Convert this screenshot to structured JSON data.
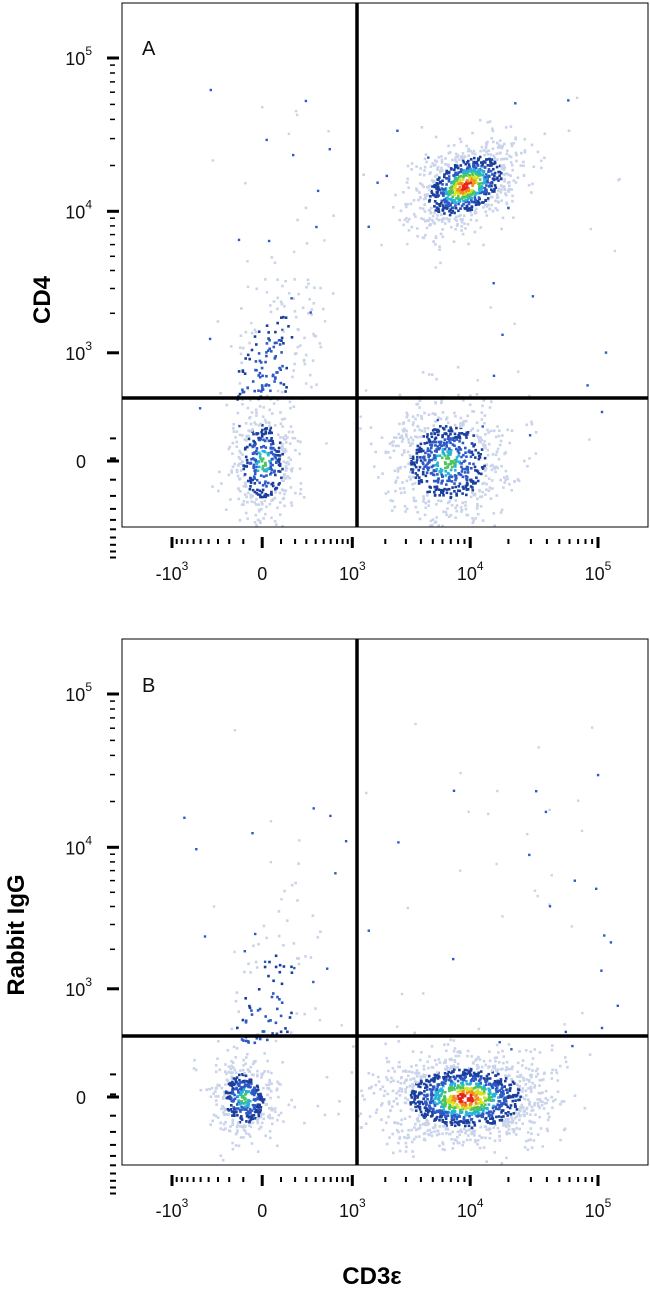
{
  "chart_data": [
    {
      "type": "scatter",
      "panel_label": "A",
      "xlabel": "",
      "ylabel": "CD4",
      "x_scale": "biexponential",
      "y_scale": "biexponential",
      "x_ticks": [
        {
          "value": -1000,
          "base": "-10",
          "exp": "3"
        },
        {
          "value": 0,
          "base": "0",
          "exp": ""
        },
        {
          "value": 1000,
          "base": "10",
          "exp": "3"
        },
        {
          "value": 10000,
          "base": "10",
          "exp": "4"
        },
        {
          "value": 100000,
          "base": "10",
          "exp": "5"
        }
      ],
      "y_ticks": [
        {
          "value": 0,
          "base": "0",
          "exp": ""
        },
        {
          "value": 1000,
          "base": "10",
          "exp": "3"
        },
        {
          "value": 10000,
          "base": "10",
          "exp": "4"
        },
        {
          "value": 100000,
          "base": "10",
          "exp": "5"
        }
      ],
      "quadrant_gates": {
        "x": 1500,
        "y": 200
      },
      "series": [
        {
          "quadrant": "upper-right",
          "center": {
            "x": 9000,
            "y": 15000
          },
          "peak_color": "#e8231b",
          "count": 900
        },
        {
          "quadrant": "lower-right",
          "center": {
            "x": 6500,
            "y": 0
          },
          "peak_color": "#4cc65a",
          "count": 750
        },
        {
          "quadrant": "lower-left",
          "center": {
            "x": 0,
            "y": 0
          },
          "peak_color": "#4cc65a",
          "count": 450
        },
        {
          "quadrant": "upper-left",
          "center": {
            "x": 0,
            "y": 600
          },
          "peak_color": "#1b4fa8",
          "count": 170
        }
      ]
    },
    {
      "type": "scatter",
      "panel_label": "B",
      "xlabel": "CD3ε",
      "ylabel": "Rabbit IgG",
      "x_scale": "biexponential",
      "y_scale": "biexponential",
      "x_ticks": [
        {
          "value": -1000,
          "base": "-10",
          "exp": "3"
        },
        {
          "value": 0,
          "base": "0",
          "exp": ""
        },
        {
          "value": 1000,
          "base": "10",
          "exp": "3"
        },
        {
          "value": 10000,
          "base": "10",
          "exp": "4"
        },
        {
          "value": 100000,
          "base": "10",
          "exp": "5"
        }
      ],
      "y_ticks": [
        {
          "value": 0,
          "base": "0",
          "exp": ""
        },
        {
          "value": 1000,
          "base": "10",
          "exp": "3"
        },
        {
          "value": 10000,
          "base": "10",
          "exp": "4"
        },
        {
          "value": 100000,
          "base": "10",
          "exp": "5"
        }
      ],
      "quadrant_gates": {
        "x": 1500,
        "y": 200
      },
      "series": [
        {
          "quadrant": "lower-right",
          "center": {
            "x": 9000,
            "y": 0
          },
          "peak_color": "#e8231b",
          "count": 1400
        },
        {
          "quadrant": "lower-left",
          "center": {
            "x": -100,
            "y": 0
          },
          "peak_color": "#4cc65a",
          "count": 450
        },
        {
          "quadrant": "upper-left",
          "center": {
            "x": 0,
            "y": 500
          },
          "peak_color": "#1b4fa8",
          "count": 90
        }
      ]
    }
  ],
  "density_colors": [
    "#c9d3ea",
    "#2d59c5",
    "#1b3f9e",
    "#27b4d6",
    "#4cc65a",
    "#d9e21f",
    "#f58a1f",
    "#e8231b"
  ]
}
